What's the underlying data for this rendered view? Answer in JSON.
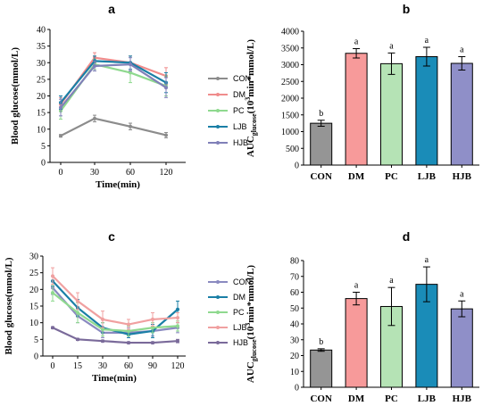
{
  "chart_data": [
    {
      "id": "a",
      "type": "line",
      "panel_label": "a",
      "xlabel": "Time(min)",
      "ylabel": "Blood glucose(mmol/L)",
      "x": [
        0,
        30,
        60,
        120
      ],
      "x_ticks": [
        "0",
        "30",
        "60",
        "120"
      ],
      "ylim": [
        0,
        40
      ],
      "y_ticks": [
        0,
        5,
        10,
        15,
        20,
        25,
        30,
        35,
        40
      ],
      "legend_position": "right",
      "series": [
        {
          "name": "CON",
          "color": "#8c8c8c",
          "values": [
            8.0,
            13.2,
            10.8,
            8.2
          ],
          "errors": [
            0.4,
            1.0,
            1.0,
            0.8
          ]
        },
        {
          "name": "DM",
          "color": "#f08c8c",
          "values": [
            17.5,
            31.5,
            30.0,
            26.0
          ],
          "errors": [
            2.0,
            1.5,
            2.0,
            2.5
          ]
        },
        {
          "name": "PC",
          "color": "#8fd98f",
          "values": [
            15.5,
            29.5,
            27.0,
            23.0
          ],
          "errors": [
            2.5,
            1.5,
            3.0,
            3.0
          ]
        },
        {
          "name": "LJB",
          "color": "#1a7fa6",
          "values": [
            18.0,
            30.5,
            30.0,
            24.0
          ],
          "errors": [
            2.0,
            1.5,
            2.0,
            3.0
          ]
        },
        {
          "name": "HJB",
          "color": "#8080b8",
          "values": [
            16.5,
            29.0,
            29.5,
            22.5
          ],
          "errors": [
            2.5,
            1.5,
            2.0,
            3.0
          ]
        }
      ]
    },
    {
      "id": "b",
      "type": "bar",
      "panel_label": "b",
      "ylabel": "AUCglucose(10³min*mmol/L)",
      "ylabel_parts": {
        "main": "AUC",
        "sub": "glucose",
        "mid": "(10",
        "sup": "3",
        "tail": "min*mmol/L)"
      },
      "categories": [
        "CON",
        "DM",
        "PC",
        "LJB",
        "HJB"
      ],
      "values": [
        1250,
        3340,
        3030,
        3240,
        3040
      ],
      "errors": [
        90,
        140,
        320,
        280,
        200
      ],
      "letters": [
        "b",
        "a",
        "a",
        "a",
        "a"
      ],
      "colors": [
        "#959595",
        "#f79a9a",
        "#b5e3b5",
        "#1a8cb8",
        "#8f8fc8"
      ],
      "ylim": [
        0,
        4000
      ],
      "y_ticks": [
        0,
        500,
        1000,
        1500,
        2000,
        2500,
        3000,
        3500,
        4000
      ]
    },
    {
      "id": "c",
      "type": "line",
      "panel_label": "c",
      "xlabel": "Time(min)",
      "ylabel": "Blood glucose(mmol/L)",
      "x": [
        0,
        15,
        30,
        60,
        90,
        120
      ],
      "x_ticks": [
        "0",
        "15",
        "30",
        "60",
        "90",
        "120"
      ],
      "ylim": [
        0,
        30
      ],
      "y_ticks": [
        0,
        5,
        10,
        15,
        20,
        25,
        30
      ],
      "legend_position": "right",
      "series": [
        {
          "name": "CON",
          "color": "#8a8ac0",
          "values": [
            20.5,
            12.0,
            7.0,
            7.0,
            7.5,
            8.5
          ],
          "errors": [
            2.0,
            2.0,
            1.5,
            1.5,
            1.5,
            1.5
          ]
        },
        {
          "name": "DM",
          "color": "#1a7fa6",
          "values": [
            22.5,
            14.5,
            8.5,
            6.5,
            7.5,
            14.0
          ],
          "errors": [
            1.5,
            2.5,
            1.5,
            1.0,
            2.0,
            2.5
          ]
        },
        {
          "name": "PC",
          "color": "#8fd98f",
          "values": [
            19.0,
            13.0,
            8.0,
            7.5,
            8.5,
            9.0
          ],
          "errors": [
            2.5,
            3.0,
            2.0,
            1.5,
            1.5,
            1.5
          ]
        },
        {
          "name": "LJB",
          "color": "#f0a0a0",
          "values": [
            24.0,
            16.5,
            11.0,
            9.5,
            11.0,
            11.5
          ],
          "errors": [
            2.5,
            2.5,
            2.5,
            1.5,
            2.0,
            1.5
          ]
        },
        {
          "name": "HJB",
          "color": "#7a6a9a",
          "values": [
            8.5,
            5.0,
            4.5,
            4.0,
            4.0,
            4.5
          ],
          "errors": [
            0.3,
            0.3,
            0.3,
            0.3,
            0.3,
            0.5
          ]
        }
      ]
    },
    {
      "id": "d",
      "type": "bar",
      "panel_label": "d",
      "ylabel": "AUCglucose(10³min*mmol/L)",
      "ylabel_parts": {
        "main": "AUC",
        "sub": "glucose",
        "mid": "(10",
        "sup": "3",
        "tail": "min*mmol/L)"
      },
      "categories": [
        "CON",
        "DM",
        "PC",
        "LJB",
        "HJB"
      ],
      "values": [
        23.5,
        56.0,
        51.0,
        65.0,
        49.5
      ],
      "errors": [
        0.8,
        4.0,
        12.0,
        11.0,
        5.0
      ],
      "letters": [
        "b",
        "a",
        "a",
        "a",
        "a"
      ],
      "colors": [
        "#959595",
        "#f79a9a",
        "#b5e3b5",
        "#1a8cb8",
        "#8f8fc8"
      ],
      "ylim": [
        0,
        80
      ],
      "y_ticks": [
        0,
        10,
        20,
        30,
        40,
        50,
        60,
        70,
        80
      ]
    }
  ]
}
